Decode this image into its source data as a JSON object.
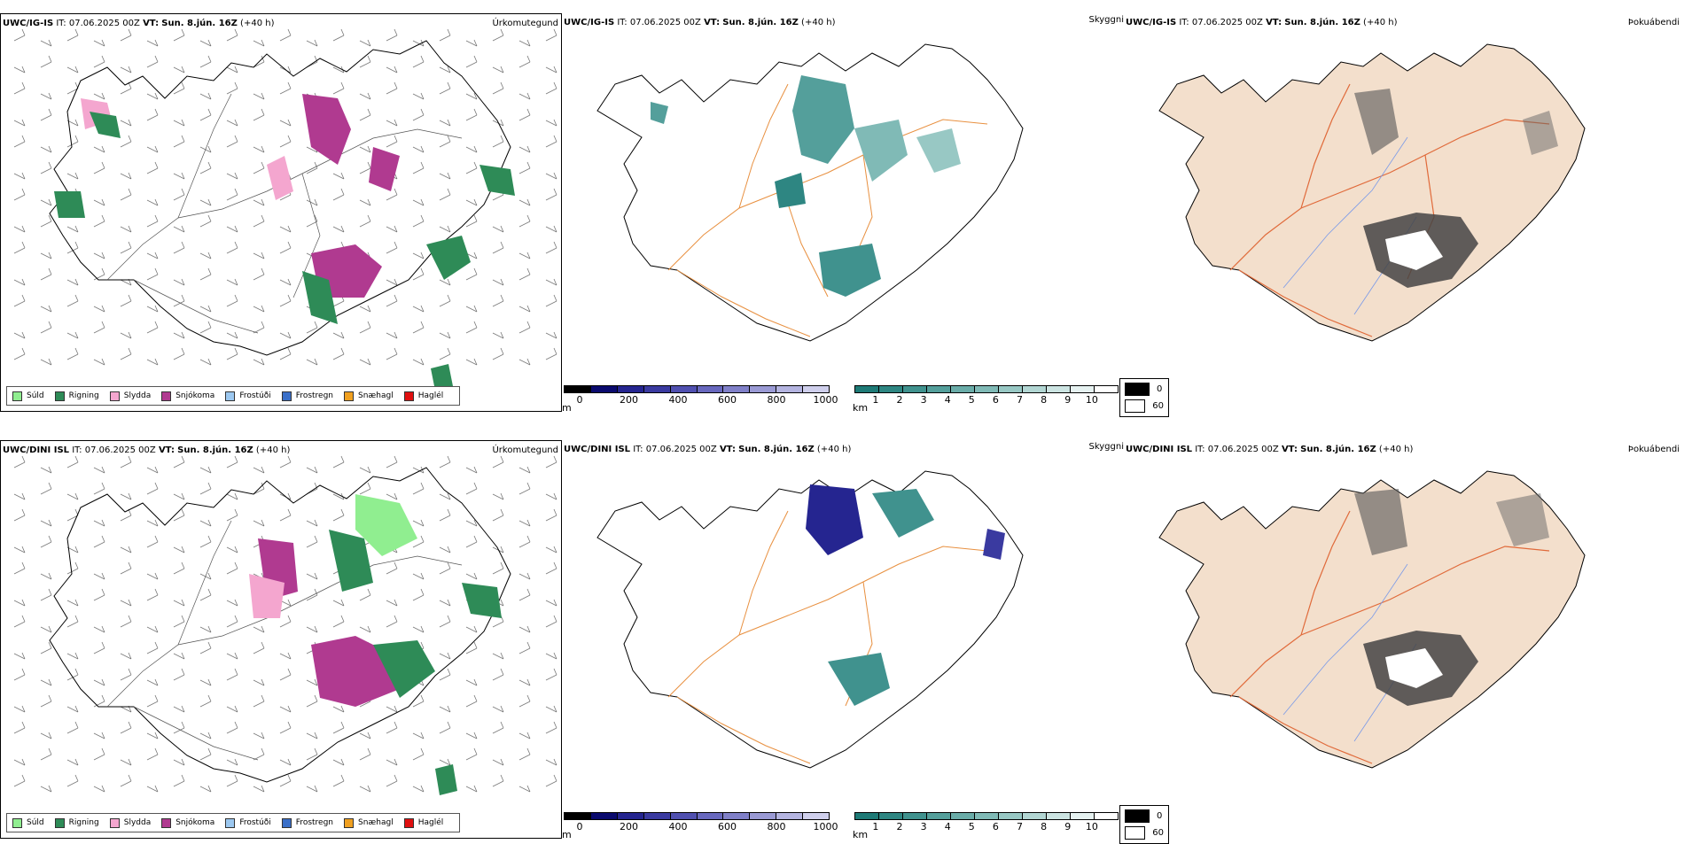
{
  "rows": [
    {
      "model": "UWC/IG-IS",
      "it_label": "IT:",
      "it_value": "07.06.2025 00Z",
      "vt_label": "VT:",
      "vt_value": "Sun. 8.jún. 16Z",
      "lead": "(+40 h)"
    },
    {
      "model": "UWC/DINI ISL",
      "it_label": "IT:",
      "it_value": "07.06.2025 00Z",
      "vt_label": "VT:",
      "vt_value": "Sun. 8.jún. 16Z",
      "lead": "(+40 h)"
    }
  ],
  "panels": {
    "precip_title": "Úrkomutegund",
    "cloud_title": "Skyggni",
    "fog_title": "Þokuábendi"
  },
  "precip_legend": [
    {
      "label": "Súld",
      "color": "#90ee90"
    },
    {
      "label": "Rigning",
      "color": "#2e8b57"
    },
    {
      "label": "Slydda",
      "color": "#f4a6cf"
    },
    {
      "label": "Snjókoma",
      "color": "#b03a90"
    },
    {
      "label": "Frostúði",
      "color": "#9cc8f0"
    },
    {
      "label": "Frostregn",
      "color": "#3a6fc8"
    },
    {
      "label": "Snæhagl",
      "color": "#f0a020"
    },
    {
      "label": "Haglél",
      "color": "#e01010"
    }
  ],
  "cloudbase_bar": {
    "unit": "m",
    "labels": [
      "0",
      "200",
      "400",
      "600",
      "800",
      "1000"
    ],
    "colors": [
      "#000000",
      "#0a0a6e",
      "#252590",
      "#3a3aa0",
      "#5050b0",
      "#6868be",
      "#8080c8",
      "#9a9ad4",
      "#b4b4e0",
      "#cfcfec"
    ]
  },
  "visibility_bar": {
    "unit": "km",
    "labels": [
      "1",
      "2",
      "3",
      "4",
      "5",
      "6",
      "7",
      "8",
      "9",
      "10"
    ],
    "colors": [
      "#1e7a76",
      "#2e8682",
      "#40928e",
      "#549f9b",
      "#6aaca8",
      "#80bab6",
      "#98c8c4",
      "#b2d6d3",
      "#cce4e2",
      "#e6f2f1",
      "#ffffff"
    ]
  },
  "fog_legend": [
    {
      "label": "0",
      "color": "#000000"
    },
    {
      "label": "60",
      "color": "#ffffff"
    }
  ],
  "colors": {
    "land_fog": "#f3dfcc",
    "roads": "#e06a3a",
    "rivers": "#7a9ae8",
    "coast": "#000000"
  }
}
